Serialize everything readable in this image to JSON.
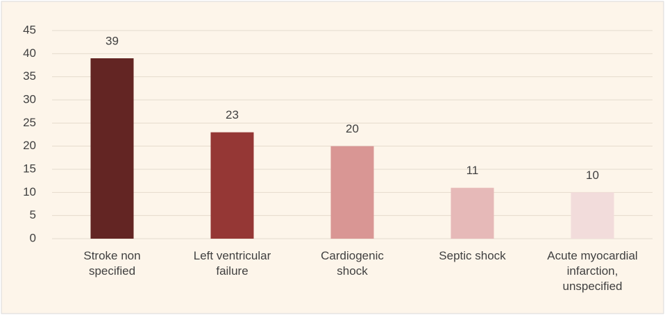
{
  "chart_data": {
    "type": "bar",
    "categories": [
      "Stroke non specified",
      "Left ventricular failure",
      "Cardiogenic shock",
      "Septic shock",
      "Acute myocardial infarction, unspecified"
    ],
    "values": [
      39,
      23,
      20,
      11,
      10
    ],
    "colors": [
      "#632523",
      "#953735",
      "#d99694",
      "#e6b9b8",
      "#f2dcdb"
    ],
    "ylim": [
      0,
      45
    ],
    "yticks": [
      0,
      5,
      10,
      15,
      20,
      25,
      30,
      35,
      40,
      45
    ],
    "grid": true,
    "data_labels": true
  }
}
